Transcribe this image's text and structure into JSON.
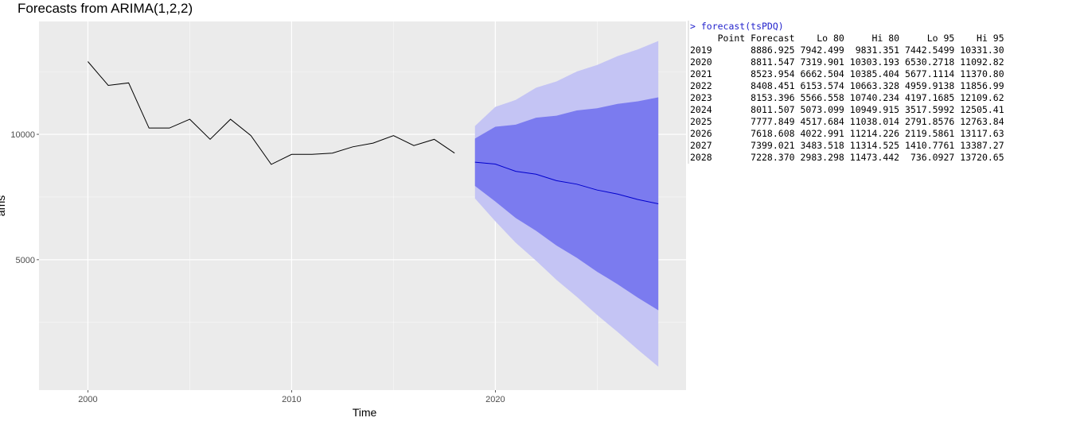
{
  "chart_data": {
    "type": "line",
    "title": "Forecasts from ARIMA(1,2,2)",
    "xlabel": "Time",
    "ylabel": "ams",
    "xlim": [
      1997.6,
      2029.4
    ],
    "ylim": [
      -200,
      14500
    ],
    "x_ticks": [
      2000,
      2010,
      2020
    ],
    "y_ticks": [
      5000,
      10000
    ],
    "grid": true,
    "legend": "none",
    "colors": {
      "panel_bg": "#ebebeb",
      "grid_major": "#ffffff",
      "history_line": "#000000",
      "forecast_line": "#0000cc",
      "band_95": "#c4c4f4",
      "band_80": "#7b7bef"
    },
    "history": {
      "x": [
        2000,
        2001,
        2002,
        2003,
        2004,
        2005,
        2006,
        2007,
        2008,
        2009,
        2010,
        2011,
        2012,
        2013,
        2014,
        2015,
        2016,
        2017,
        2018
      ],
      "y": [
        12900,
        11950,
        12050,
        10250,
        10250,
        10600,
        9800,
        10600,
        9950,
        8800,
        9200,
        9200,
        9250,
        9500,
        9650,
        9950,
        9550,
        9800,
        9250
      ]
    },
    "forecast": {
      "x": [
        2019,
        2020,
        2021,
        2022,
        2023,
        2024,
        2025,
        2026,
        2027,
        2028
      ],
      "point": [
        8886.925,
        8811.547,
        8523.954,
        8408.451,
        8153.396,
        8011.507,
        7777.849,
        7618.608,
        7399.021,
        7228.37
      ],
      "lo80": [
        7942.499,
        7319.901,
        6662.504,
        6153.574,
        5566.558,
        5073.099,
        4517.684,
        4022.991,
        3483.518,
        2983.298
      ],
      "hi80": [
        9831.351,
        10303.193,
        10385.404,
        10663.328,
        10740.234,
        10949.915,
        11038.014,
        11214.226,
        11314.525,
        11473.442
      ],
      "lo95": [
        7442.5499,
        6530.2718,
        5677.1114,
        4959.9138,
        4197.1685,
        3517.5992,
        2791.8576,
        2119.5861,
        1410.7761,
        736.0927
      ],
      "hi95": [
        10331.3,
        11092.82,
        11370.8,
        11856.99,
        12109.62,
        12505.41,
        12763.84,
        13117.63,
        13387.27,
        13720.65
      ]
    }
  },
  "console": {
    "command": "> forecast(tsPDQ)",
    "header": "     Point Forecast    Lo 80     Hi 80     Lo 95    Hi 95",
    "rows": [
      "2019       8886.925 7942.499  9831.351 7442.5499 10331.30",
      "2020       8811.547 7319.901 10303.193 6530.2718 11092.82",
      "2021       8523.954 6662.504 10385.404 5677.1114 11370.80",
      "2022       8408.451 6153.574 10663.328 4959.9138 11856.99",
      "2023       8153.396 5566.558 10740.234 4197.1685 12109.62",
      "2024       8011.507 5073.099 10949.915 3517.5992 12505.41",
      "2025       7777.849 4517.684 11038.014 2791.8576 12763.84",
      "2026       7618.608 4022.991 11214.226 2119.5861 13117.63",
      "2027       7399.021 3483.518 11314.525 1410.7761 13387.27",
      "2028       7228.370 2983.298 11473.442  736.0927 13720.65"
    ]
  }
}
